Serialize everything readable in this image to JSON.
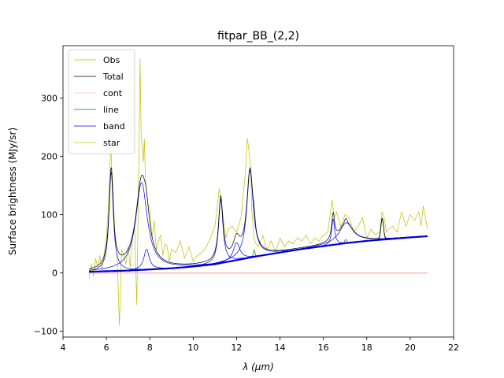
{
  "chart_data": {
    "type": "line",
    "title": "fitpar_BB_(2,2)",
    "xlabel": "λ (μm)",
    "ylabel": "Surface brightness  (MJy/sr)",
    "xlim": [
      4,
      22
    ],
    "ylim": [
      -110,
      390
    ],
    "xticks": [
      "4",
      "6",
      "8",
      "10",
      "12",
      "14",
      "16",
      "18",
      "20",
      "22"
    ],
    "yticks": [
      "−100",
      "0",
      "100",
      "200",
      "300"
    ],
    "grid": false,
    "legend_position": "top-left",
    "colors": {
      "obs": "#bfbf00",
      "total": "#000000",
      "cont": "#ffc0cb",
      "line": "#008000",
      "band": "#0000ff",
      "star": "#bfbf00",
      "baseline": "#ffa07a"
    },
    "series": [
      {
        "name": "Obs"
      },
      {
        "name": "Total"
      },
      {
        "name": "cont"
      },
      {
        "name": "line"
      },
      {
        "name": "band"
      },
      {
        "name": "star"
      }
    ],
    "continuum": {
      "x": [
        5.2,
        6,
        7,
        8,
        9,
        10,
        11,
        12,
        13,
        14,
        15,
        16,
        17,
        18,
        19,
        20,
        20.8
      ],
      "y": [
        2,
        3,
        4,
        6,
        8,
        11,
        15,
        22,
        29,
        35,
        41,
        46,
        51,
        55,
        58,
        61,
        63
      ]
    },
    "bands": [
      {
        "center": 6.22,
        "height": 170,
        "width": 0.12
      },
      {
        "center": 7.62,
        "height": 150,
        "width": 0.32
      },
      {
        "center": 7.85,
        "height": 35,
        "width": 0.15
      },
      {
        "center": 11.27,
        "height": 110,
        "width": 0.12
      },
      {
        "center": 12.0,
        "height": 30,
        "width": 0.18
      },
      {
        "center": 12.62,
        "height": 150,
        "width": 0.18
      },
      {
        "center": 16.45,
        "height": 45,
        "width": 0.08
      },
      {
        "center": 17.05,
        "height": 35,
        "width": 0.38
      }
    ],
    "lines": [
      {
        "center": 12.81,
        "height": 12,
        "width": 0.04
      },
      {
        "center": 17.03,
        "height": 6,
        "width": 0.05
      },
      {
        "center": 18.71,
        "height": 35,
        "width": 0.06
      }
    ],
    "obs": {
      "x": [
        5.2,
        5.3,
        5.4,
        5.5,
        5.6,
        5.7,
        5.8,
        5.9,
        6.0,
        6.1,
        6.2,
        6.25,
        6.3,
        6.4,
        6.5,
        6.6,
        6.7,
        6.8,
        6.9,
        7.0,
        7.1,
        7.2,
        7.3,
        7.4,
        7.5,
        7.55,
        7.6,
        7.7,
        7.75,
        7.8,
        7.9,
        8.0,
        8.1,
        8.2,
        8.3,
        8.4,
        8.5,
        8.6,
        8.7,
        8.8,
        8.9,
        9.0,
        9.2,
        9.4,
        9.6,
        9.8,
        10.0,
        10.2,
        10.4,
        10.6,
        10.8,
        11.0,
        11.1,
        11.2,
        11.3,
        11.4,
        11.5,
        11.6,
        11.8,
        12.0,
        12.2,
        12.4,
        12.5,
        12.6,
        12.65,
        12.7,
        12.8,
        12.9,
        13.0,
        13.2,
        13.4,
        13.6,
        13.8,
        14.0,
        14.2,
        14.4,
        14.6,
        14.8,
        15.0,
        15.2,
        15.4,
        15.6,
        15.8,
        16.0,
        16.2,
        16.4,
        16.5,
        16.6,
        16.8,
        17.0,
        17.2,
        17.4,
        17.6,
        17.8,
        18.0,
        18.2,
        18.4,
        18.6,
        18.7,
        18.8,
        18.9,
        19.0,
        19.2,
        19.4,
        19.6,
        19.8,
        20.0,
        20.2,
        20.4,
        20.5,
        20.6,
        20.8
      ],
      "y": [
        -10,
        15,
        -5,
        25,
        10,
        30,
        5,
        35,
        60,
        120,
        220,
        175,
        150,
        55,
        25,
        -90,
        40,
        30,
        15,
        45,
        10,
        60,
        80,
        -55,
        200,
        368,
        240,
        190,
        230,
        160,
        120,
        110,
        60,
        90,
        40,
        55,
        65,
        30,
        50,
        45,
        20,
        40,
        35,
        55,
        25,
        45,
        20,
        30,
        35,
        45,
        60,
        80,
        110,
        145,
        120,
        90,
        60,
        75,
        80,
        70,
        95,
        170,
        231,
        200,
        180,
        110,
        60,
        50,
        45,
        65,
        40,
        55,
        35,
        60,
        45,
        55,
        50,
        60,
        55,
        65,
        50,
        60,
        55,
        65,
        70,
        125,
        95,
        105,
        80,
        100,
        95,
        70,
        80,
        95,
        60,
        75,
        65,
        70,
        105,
        95,
        70,
        75,
        80,
        70,
        105,
        80,
        100,
        90,
        105,
        80,
        115,
        75
      ]
    }
  }
}
